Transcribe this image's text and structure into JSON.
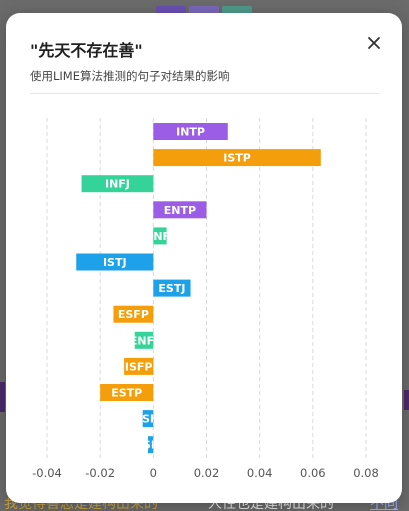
{
  "modal": {
    "title": "\"先天不存在善\"",
    "subtitle": "使用LIME算法推测的句子对结果的影响"
  },
  "background": {
    "bottom_left_text": "我觉得善恶是建构出来的",
    "bottom_mid_text": "人性也是建构出来的",
    "bottom_right_text": "不同"
  },
  "colors": {
    "purple": "#9b5de5",
    "orange": "#f59e0b",
    "green": "#34d399",
    "blue": "#1da1e8"
  },
  "chart_data": {
    "type": "bar",
    "orientation": "horizontal",
    "categories": [
      "INTP",
      "ISTP",
      "INFJ",
      "ENTP",
      "ENFJ",
      "ISTJ",
      "ESTJ",
      "ESFP",
      "ENFJ",
      "ISFP",
      "ESTP",
      "ESFJ",
      "ISFJ"
    ],
    "values": [
      0.028,
      0.063,
      -0.027,
      0.02,
      0.005,
      -0.029,
      0.014,
      -0.015,
      -0.007,
      -0.011,
      -0.02,
      -0.004,
      -0.002
    ],
    "bar_colors": [
      "purple",
      "orange",
      "green",
      "purple",
      "green",
      "blue",
      "blue",
      "orange",
      "green",
      "orange",
      "orange",
      "blue",
      "blue"
    ],
    "xlim": [
      -0.04,
      0.08
    ],
    "xticks": [
      -0.04,
      -0.02,
      0,
      0.02,
      0.04,
      0.06,
      0.08
    ],
    "xtick_labels": [
      "-0.04",
      "-0.02",
      "0",
      "0.02",
      "0.04",
      "0.06",
      "0.08"
    ],
    "grid": true,
    "legend": "none"
  }
}
